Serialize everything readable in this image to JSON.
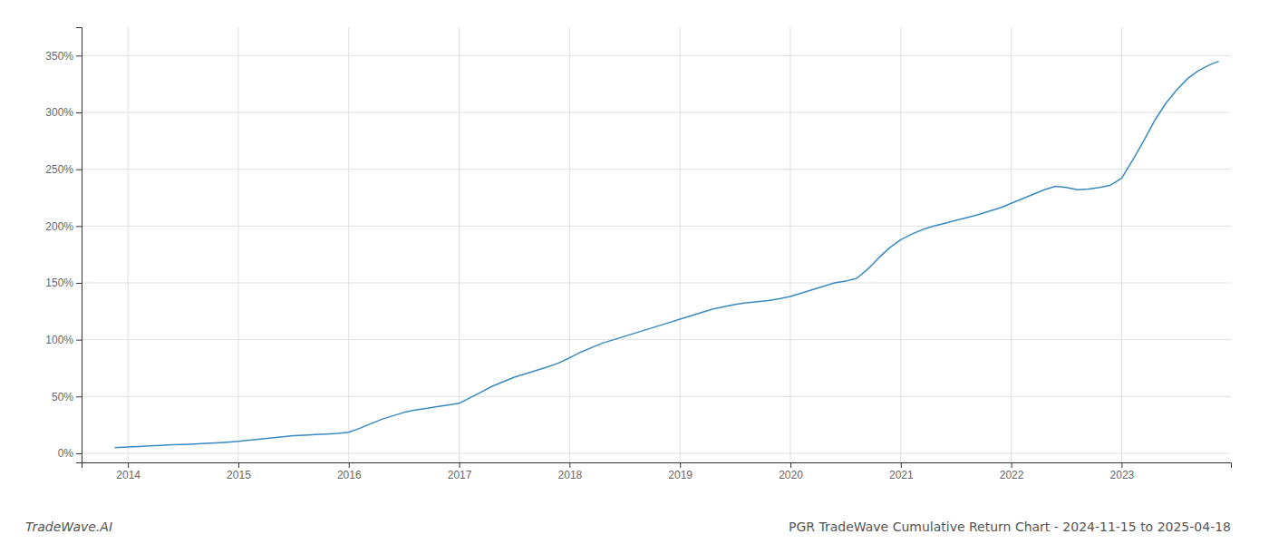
{
  "chart_data": {
    "type": "line",
    "title": "PGR TradeWave Cumulative Return Chart - 2024-11-15 to 2025-04-18",
    "annotations": [
      "TradeWave.AI"
    ],
    "color": "#3a8abf",
    "grid": true,
    "xlim": [
      2013.58,
      2023.99
    ],
    "xticks": [
      2014,
      2015,
      2016,
      2017,
      2018,
      2019,
      2020,
      2021,
      2022,
      2023
    ],
    "ylim": [
      -8,
      375
    ],
    "yticks": [
      {
        "value": 0,
        "label": "0%"
      },
      {
        "value": 50,
        "label": "50%"
      },
      {
        "value": 100,
        "label": "100%"
      },
      {
        "value": 150,
        "label": "150%"
      },
      {
        "value": 200,
        "label": "200%"
      },
      {
        "value": 250,
        "label": "250%"
      },
      {
        "value": 300,
        "label": "300%"
      },
      {
        "value": 350,
        "label": "350%"
      }
    ],
    "x": [
      2013.88,
      2014.0,
      2014.1,
      2014.2,
      2014.3,
      2014.4,
      2014.5,
      2014.6,
      2014.7,
      2014.8,
      2014.9,
      2015.0,
      2015.1,
      2015.2,
      2015.3,
      2015.4,
      2015.5,
      2015.6,
      2015.7,
      2015.8,
      2015.9,
      2016.0,
      2016.1,
      2016.2,
      2016.3,
      2016.4,
      2016.5,
      2016.6,
      2016.7,
      2016.8,
      2016.9,
      2017.0,
      2017.1,
      2017.2,
      2017.3,
      2017.4,
      2017.5,
      2017.6,
      2017.7,
      2017.8,
      2017.9,
      2018.0,
      2018.1,
      2018.2,
      2018.3,
      2018.4,
      2018.5,
      2018.6,
      2018.7,
      2018.8,
      2018.9,
      2019.0,
      2019.1,
      2019.2,
      2019.3,
      2019.4,
      2019.5,
      2019.6,
      2019.7,
      2019.8,
      2019.9,
      2020.0,
      2020.1,
      2020.2,
      2020.3,
      2020.4,
      2020.5,
      2020.6,
      2020.7,
      2020.8,
      2020.9,
      2021.0,
      2021.1,
      2021.2,
      2021.3,
      2021.4,
      2021.5,
      2021.6,
      2021.7,
      2021.8,
      2021.9,
      2022.0,
      2022.1,
      2022.2,
      2022.3,
      2022.4,
      2022.5,
      2022.6,
      2022.7,
      2022.8,
      2022.9,
      2023.0,
      2023.1,
      2023.2,
      2023.3,
      2023.4,
      2023.5,
      2023.6,
      2023.7,
      2023.8,
      2023.88
    ],
    "values": [
      5.0,
      5.5,
      6.0,
      6.5,
      7.0,
      7.5,
      7.8,
      8.2,
      8.8,
      9.2,
      9.8,
      10.5,
      11.5,
      12.5,
      13.5,
      14.5,
      15.5,
      16.0,
      16.5,
      17.0,
      17.5,
      18.5,
      22.0,
      26.0,
      30.0,
      33.0,
      36.0,
      38.0,
      39.5,
      41.0,
      42.5,
      44.0,
      49.0,
      54.0,
      59.0,
      63.0,
      67.0,
      70.0,
      73.0,
      76.0,
      79.5,
      84.0,
      89.0,
      93.0,
      97.0,
      100.0,
      103.0,
      106.0,
      109.0,
      112.0,
      115.0,
      118.0,
      121.0,
      124.0,
      127.0,
      129.0,
      131.0,
      132.5,
      133.5,
      134.5,
      136.0,
      138.0,
      141.0,
      144.0,
      147.0,
      150.0,
      151.5,
      154.0,
      162.0,
      172.0,
      181.0,
      188.0,
      193.0,
      197.0,
      200.0,
      202.5,
      205.0,
      207.5,
      210.0,
      213.0,
      216.0,
      220.0,
      224.0,
      228.0,
      232.0,
      235.0,
      234.0,
      232.0,
      232.5,
      234.0,
      236.0,
      242.0,
      258.0,
      275.0,
      293.0,
      308.0,
      320.0,
      330.0,
      337.0,
      342.0,
      345.0
    ]
  }
}
